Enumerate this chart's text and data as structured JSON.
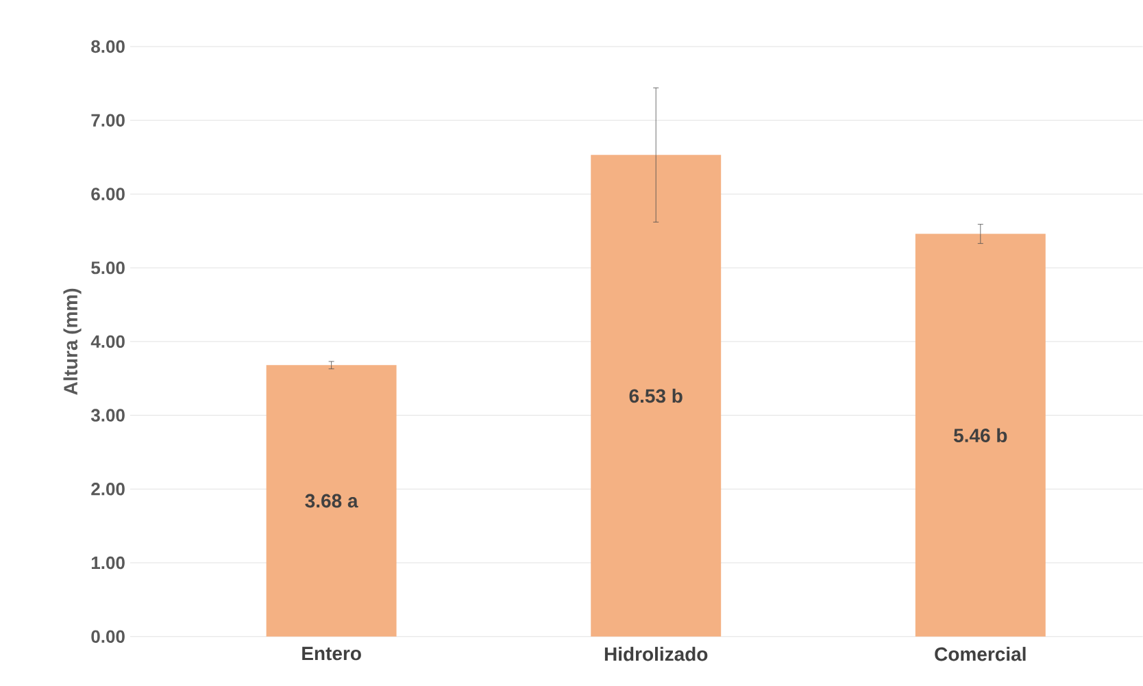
{
  "chart_data": {
    "type": "bar",
    "ylabel": "Altura (mm)",
    "categories": [
      "Entero",
      "Hidrolizado",
      "Comercial"
    ],
    "values": [
      3.68,
      6.53,
      5.46
    ],
    "errors": [
      0.05,
      0.91,
      0.13
    ],
    "value_labels": [
      "3.68 a",
      "6.53 b",
      "5.46 b"
    ],
    "color": "#f4b183",
    "ylim": [
      0,
      8
    ],
    "yticks": [
      {
        "value": 0,
        "label": "0.00"
      },
      {
        "value": 1,
        "label": "1.00"
      },
      {
        "value": 2,
        "label": "2.00"
      },
      {
        "value": 3,
        "label": "3.00"
      },
      {
        "value": 4,
        "label": "4.00"
      },
      {
        "value": 5,
        "label": "5.00"
      },
      {
        "value": 6,
        "label": "6.00"
      },
      {
        "value": 7,
        "label": "7.00"
      },
      {
        "value": 8,
        "label": "8.00"
      }
    ],
    "grid": "y"
  }
}
